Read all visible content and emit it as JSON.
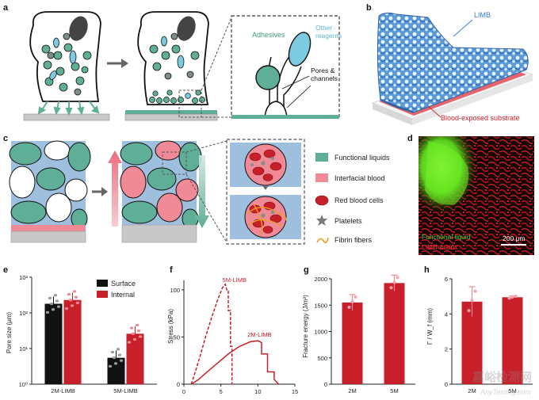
{
  "figure": {
    "panel_labels": {
      "a": "a",
      "b": "b",
      "c": "c",
      "d": "d",
      "e": "e",
      "f": "f",
      "g": "g",
      "h": "h"
    },
    "watermark": {
      "cn": "嘉峪检测网",
      "en": "AnyTesting.com"
    }
  },
  "panel_a": {
    "adhesives": "Adhesives",
    "other_reagents": "Other\nreagents",
    "pores_channels": "Pores &\nchannels",
    "colors": {
      "adhesive": "#5fae97",
      "reagent": "#7ccbe0",
      "substrate": "#c8c8c8",
      "green_layer": "#5fae97"
    }
  },
  "panel_b": {
    "limb": "LIMB",
    "substrate": "Blood-exposed substrate",
    "colors": {
      "limb": "#3b78c4",
      "label_blue": "#3b78c4",
      "label_red": "#c8202a"
    }
  },
  "panel_c": {
    "legend": [
      {
        "label": "Functional liquids",
        "color": "#5fae97"
      },
      {
        "label": "Interfacial blood",
        "color": "#f08a96"
      },
      {
        "label": "Red blood cells",
        "color": "#c8202a"
      },
      {
        "label": "Platelets",
        "color": "#7a7a7a"
      },
      {
        "label": "Fibrin fibers",
        "color": "#e8a020"
      }
    ]
  },
  "panel_d": {
    "label_green": "Functional liquid",
    "label_red": "LIMB matrix",
    "scale": "200 μm"
  },
  "panel_e": {
    "chart_data": {
      "type": "bar",
      "categories": [
        "2M-LIMB",
        "5M-LIMB"
      ],
      "series": [
        {
          "name": "Surface",
          "values": [
            180,
            5.5
          ],
          "color": "#111111"
        },
        {
          "name": "Internal",
          "values": [
            230,
            26
          ],
          "color": "#c8202a"
        }
      ],
      "ylabel": "Pore size (μm)",
      "yscale": "log",
      "ylim": [
        1,
        1000
      ],
      "yticks": [
        "10⁰",
        "10¹",
        "10²",
        "10³"
      ]
    }
  },
  "panel_f": {
    "chart_data": {
      "type": "line",
      "xlabel": "",
      "ylabel": "Stress (kPa)",
      "xlim": [
        0,
        15
      ],
      "ylim": [
        0,
        110
      ],
      "xticks": [
        "0",
        "5",
        "10",
        "15"
      ],
      "yticks": [
        "0",
        "50",
        "100"
      ],
      "series": [
        {
          "name": "5M-LIMB",
          "style": "dashed",
          "color": "#c8202a",
          "x": [
            1.0,
            1.5,
            2.2,
            3.0,
            3.8,
            4.6,
            5.2,
            5.6,
            5.8,
            6.0,
            6.0,
            6.3,
            6.3,
            6.5,
            6.5
          ],
          "y": [
            0,
            12,
            30,
            52,
            72,
            90,
            102,
            106,
            100,
            100,
            78,
            78,
            40,
            40,
            0
          ]
        },
        {
          "name": "2M-LIMB",
          "style": "solid",
          "color": "#c8202a",
          "x": [
            1.0,
            2.0,
            3.0,
            4.5,
            6.0,
            7.5,
            9.0,
            10.0,
            10.5,
            10.5,
            11.3,
            11.3,
            12.2,
            12.2,
            12.8
          ],
          "y": [
            0,
            5,
            12,
            22,
            32,
            40,
            45,
            46,
            44,
            32,
            32,
            13,
            13,
            5,
            0
          ]
        }
      ]
    }
  },
  "panel_g": {
    "chart_data": {
      "type": "bar",
      "categories": [
        "2M",
        "5M"
      ],
      "values": [
        1550,
        1920
      ],
      "errors": [
        150,
        150
      ],
      "ylabel": "Fracture energy (J/m²)",
      "ylim": [
        0,
        2000
      ],
      "yticks": [
        "0",
        "500",
        "1000",
        "1500",
        "2000"
      ],
      "color": "#c8202a"
    }
  },
  "panel_h": {
    "chart_data": {
      "type": "bar",
      "categories": [
        "2M",
        "5M"
      ],
      "values": [
        4.7,
        4.95
      ],
      "errors": [
        0.85,
        0.08
      ],
      "ylabel": "Γ / W_f (mm)",
      "ylim": [
        0,
        6
      ],
      "yticks": [
        "0",
        "2",
        "4",
        "6"
      ],
      "color": "#c8202a"
    }
  }
}
